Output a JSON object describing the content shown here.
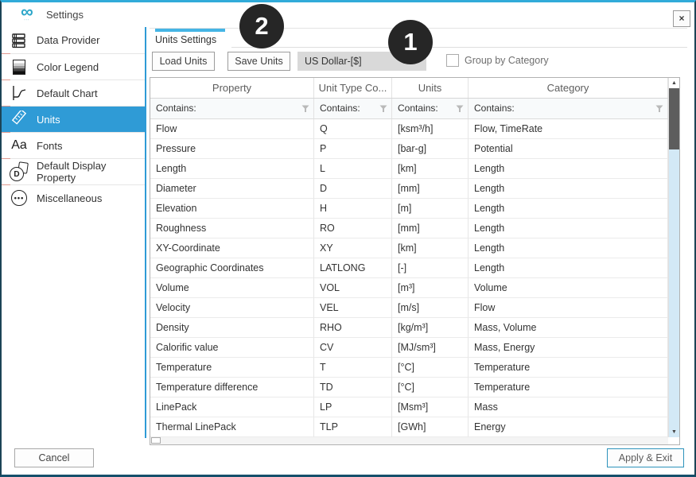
{
  "window": {
    "title": "Settings",
    "close": "×"
  },
  "icons": {
    "up_arrow": "▲",
    "down_arrow": "▼",
    "dropdown_arrow": "▼",
    "logo": "∞",
    "fonts": "Aa",
    "misc_dots": "•••",
    "ddp_letter": "D"
  },
  "sidebar": {
    "items": [
      {
        "label": "Data Provider"
      },
      {
        "label": "Color Legend"
      },
      {
        "label": "Default Chart"
      },
      {
        "label": "Units",
        "selected": true
      },
      {
        "label": "Fonts"
      },
      {
        "label": "Default Display Property"
      },
      {
        "label": "Miscellaneous"
      }
    ]
  },
  "main": {
    "tab_label": "Units Settings",
    "toolbar": {
      "load_button": "Load Units",
      "save_button": "Save Units",
      "currency_dropdown_value": "US Dollar-[$]",
      "group_checkbox_label": "Group by Category",
      "group_checkbox_checked": false
    },
    "table": {
      "columns": [
        "Property",
        "Unit Type Co...",
        "Units",
        "Category"
      ],
      "filter_placeholder": "Contains:",
      "rows": [
        {
          "property": "Flow",
          "code": "Q",
          "units": "[ksm³/h]",
          "category": "Flow, TimeRate"
        },
        {
          "property": "Pressure",
          "code": "P",
          "units": "[bar-g]",
          "category": "Potential"
        },
        {
          "property": "Length",
          "code": "L",
          "units": "[km]",
          "category": "Length"
        },
        {
          "property": "Diameter",
          "code": "D",
          "units": "[mm]",
          "category": "Length"
        },
        {
          "property": "Elevation",
          "code": "H",
          "units": "[m]",
          "category": "Length"
        },
        {
          "property": "Roughness",
          "code": "RO",
          "units": "[mm]",
          "category": "Length"
        },
        {
          "property": "XY-Coordinate",
          "code": "XY",
          "units": "[km]",
          "category": "Length"
        },
        {
          "property": "Geographic Coordinates",
          "code": "LATLONG",
          "units": "[-]",
          "category": "Length"
        },
        {
          "property": "Volume",
          "code": "VOL",
          "units": "[m³]",
          "category": "Volume"
        },
        {
          "property": "Velocity",
          "code": "VEL",
          "units": "[m/s]",
          "category": "Flow"
        },
        {
          "property": "Density",
          "code": "RHO",
          "units": "[kg/m³]",
          "category": "Mass, Volume"
        },
        {
          "property": "Calorific value",
          "code": "CV",
          "units": "[MJ/sm³]",
          "category": "Mass, Energy"
        },
        {
          "property": "Temperature",
          "code": "T",
          "units": "[°C]",
          "category": "Temperature"
        },
        {
          "property": "Temperature difference",
          "code": "TD",
          "units": "[°C]",
          "category": "Temperature"
        },
        {
          "property": "LinePack",
          "code": "LP",
          "units": "[Msm³]",
          "category": "Mass"
        },
        {
          "property": "Thermal LinePack",
          "code": "TLP",
          "units": "[GWh]",
          "category": "Energy"
        }
      ]
    }
  },
  "footer": {
    "cancel_button": "Cancel",
    "apply_button": "Apply & Exit"
  },
  "annotations": {
    "badge_1": "1",
    "badge_2": "2"
  },
  "colors": {
    "accent_blue": "#2f9bd6",
    "tab_accent": "#45b5e5",
    "badge_bg": "#262626",
    "scroll_thumb": "#5d5d5d",
    "scroll_track": "#d3e9f6",
    "dropdown_bg": "#d9d9d9"
  }
}
